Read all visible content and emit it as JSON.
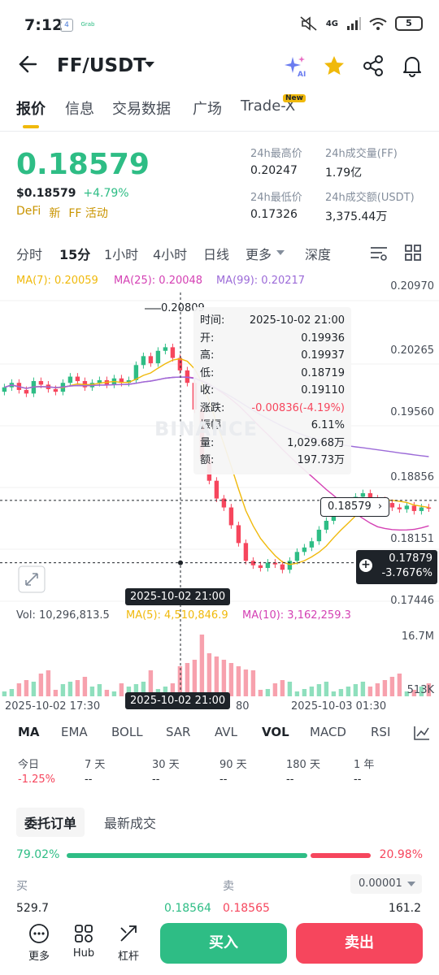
{
  "status_bar": {
    "time": "7:12",
    "app_icons": [
      "4",
      "Grab"
    ],
    "network": "4G",
    "battery": "5"
  },
  "header": {
    "pair": "FF/USDT"
  },
  "tabs": [
    "报价",
    "信息",
    "交易数据",
    "广场",
    "Trade-X"
  ],
  "tab_new_badge": "New",
  "price": {
    "last": "0.18579",
    "usd": "$0.18579",
    "change": "+4.79%",
    "tags": [
      "DeFi",
      "新",
      "FF 活动"
    ]
  },
  "stats": {
    "high_label": "24h最高价",
    "high": "0.20247",
    "vol_ff_label": "24h成交量(FF)",
    "vol_ff": "1.79亿",
    "low_label": "24h最低价",
    "low": "0.17326",
    "vol_usdt_label": "24h成交额(USDT)",
    "vol_usdt": "3,375.44万"
  },
  "intervals": [
    "分时",
    "15分",
    "1小时",
    "4小时",
    "日线",
    "更多",
    "深度"
  ],
  "ma_legend": {
    "ma7": "MA(7): 0.20059",
    "ma25": "MA(25): 0.20048",
    "ma99": "MA(99): 0.20217"
  },
  "y_axis": [
    "0.20970",
    "0.20265",
    "0.19560",
    "0.18856",
    "0.18151",
    "0.17446"
  ],
  "high_marker": "0.20809",
  "current_price_tag": "0.18579",
  "crosshair": {
    "price": "0.17879",
    "pct": "-3.7676%",
    "time": "2025-10-02 21:00"
  },
  "tooltip": [
    {
      "k": "时间:",
      "v": "2025-10-02 21:00"
    },
    {
      "k": "开:",
      "v": "0.19936"
    },
    {
      "k": "高:",
      "v": "0.19937"
    },
    {
      "k": "低:",
      "v": "0.18719"
    },
    {
      "k": "收:",
      "v": "0.19110"
    },
    {
      "k": "涨跌:",
      "v": "-0.00836(-4.19%)"
    },
    {
      "k": "振幅:",
      "v": "6.11%"
    },
    {
      "k": "量:",
      "v": "1,029.68万"
    },
    {
      "k": "额:",
      "v": "197.73万"
    }
  ],
  "volume_legend": {
    "vol": "Vol: 10,296,813.5",
    "ma5": "MA(5): 4,510,846.9",
    "ma10": "MA(10): 3,162,259.3"
  },
  "volume_axis": [
    "16.7M",
    "513K"
  ],
  "x_axis": [
    "2025-10-02 17:30",
    "80",
    "2025-10-03 01:30"
  ],
  "watermark": "BINANCE",
  "indicators": [
    "MA",
    "EMA",
    "BOLL",
    "SAR",
    "AVL",
    "VOL",
    "MACD",
    "RSI"
  ],
  "performance": [
    {
      "label": "今日",
      "value": "-1.25%"
    },
    {
      "label": "7 天",
      "value": "--"
    },
    {
      "label": "30 天",
      "value": "--"
    },
    {
      "label": "90 天",
      "value": "--"
    },
    {
      "label": "180 天",
      "value": "--"
    },
    {
      "label": "1 年",
      "value": "--"
    }
  ],
  "order_tabs": [
    "委托订单",
    "最新成交"
  ],
  "ratio": {
    "buy": "79.02%",
    "sell": "20.98%",
    "buy_fraction": 0.7902
  },
  "book": {
    "buy_label": "买",
    "sell_label": "卖",
    "precision": "0.00001",
    "row": [
      "529.7",
      "0.18564",
      "0.18565",
      "161.2"
    ]
  },
  "bottom": {
    "more": "更多",
    "hub": "Hub",
    "leverage": "杠杆",
    "buy": "买入",
    "sell": "卖出"
  },
  "colors": {
    "green": "#2ebd85",
    "red": "#f6465d",
    "gold": "#f0b90b",
    "ma7": "#f0b90b",
    "ma25": "#d441b4",
    "ma99": "#9c6bd8"
  }
}
